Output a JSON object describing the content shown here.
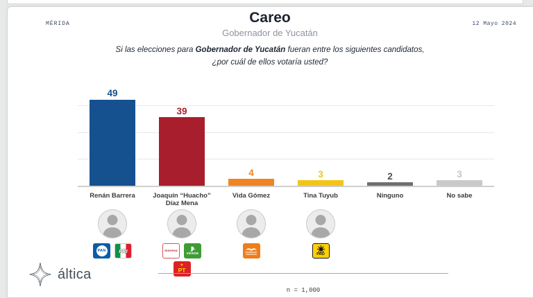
{
  "header": {
    "location": "MÉRIDA",
    "date": "12 Mayo 2024",
    "title": "Careo",
    "subtitle": "Gobernador de Yucatán",
    "question": {
      "prefix": "Si las elecciones para ",
      "bold": "Gobernador de Yucatán",
      "suffix": " fueran entre los siguientes candidatos, ¿por cuál de ellos votaría usted?"
    }
  },
  "chart_data": {
    "type": "bar",
    "title": "Careo — Gobernador de Yucatán",
    "categories": [
      "Renán Barrera",
      "Joaquín “Huacho” Díaz Mena",
      "Vida Gómez",
      "Tina Tuyub",
      "Ninguno",
      "No sabe"
    ],
    "values": [
      49,
      39,
      4,
      3,
      2,
      3
    ],
    "bar_colors": [
      "#15508f",
      "#a81e2c",
      "#ee8522",
      "#f3c517",
      "#6e6e6e",
      "#c9c9c9"
    ],
    "label_colors": [
      "#15508f",
      "#a81e2c",
      "#ee8522",
      "#f3c517",
      "#4f4f4f",
      "#c6c6c6"
    ],
    "ylim": [
      0,
      55
    ],
    "gridline_values": [
      15,
      30,
      45
    ],
    "grid": true,
    "xlabel": "",
    "ylabel": "",
    "legend": "none",
    "columns": [
      {
        "name_lines": [
          "Renán Barrera"
        ],
        "photo": true,
        "parties": [
          "pan",
          "pri"
        ]
      },
      {
        "name_lines": [
          "Joaquín “Huacho”",
          "Díaz Mena"
        ],
        "photo": true,
        "parties": [
          "morena",
          "verde",
          "pt"
        ]
      },
      {
        "name_lines": [
          "Vida Gómez"
        ],
        "photo": true,
        "parties": [
          "mc"
        ]
      },
      {
        "name_lines": [
          "Tina Tuyub"
        ],
        "photo": true,
        "parties": [
          "prd"
        ]
      },
      {
        "name_lines": [
          "Ninguno"
        ],
        "photo": false,
        "parties": []
      },
      {
        "name_lines": [
          "No sabe"
        ],
        "photo": false,
        "parties": []
      }
    ]
  },
  "party_labels": {
    "pan": "PAN",
    "pri": "PRI",
    "morena": "morena",
    "verde": "VERDE",
    "pt": "PT",
    "mc": "MOVIMIENTO CIUDADANO",
    "prd": "PRD"
  },
  "footer": {
    "brand": "áltica",
    "sample": "n = 1,000"
  }
}
